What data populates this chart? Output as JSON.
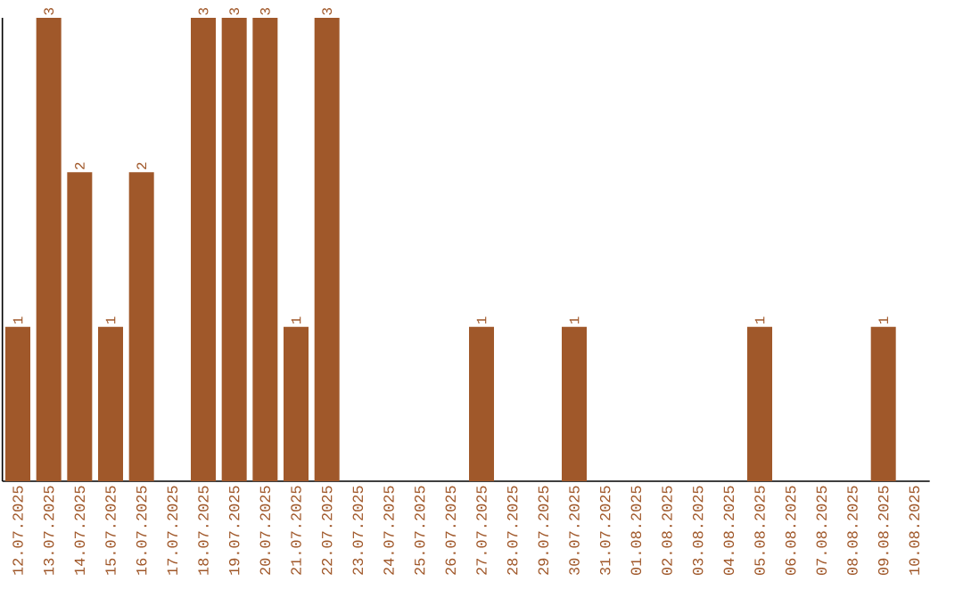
{
  "chart_data": {
    "type": "bar",
    "categories": [
      "12.07.2025",
      "13.07.2025",
      "14.07.2025",
      "15.07.2025",
      "16.07.2025",
      "17.07.2025",
      "18.07.2025",
      "19.07.2025",
      "20.07.2025",
      "21.07.2025",
      "22.07.2025",
      "23.07.2025",
      "24.07.2025",
      "25.07.2025",
      "26.07.2025",
      "27.07.2025",
      "28.07.2025",
      "29.07.2025",
      "30.07.2025",
      "31.07.2025",
      "01.08.2025",
      "02.08.2025",
      "03.08.2025",
      "04.08.2025",
      "05.08.2025",
      "06.08.2025",
      "07.08.2025",
      "08.08.2025",
      "09.08.2025",
      "10.08.2025"
    ],
    "values": [
      1,
      3,
      2,
      1,
      2,
      0,
      3,
      3,
      3,
      1,
      3,
      0,
      0,
      0,
      0,
      1,
      0,
      0,
      1,
      0,
      0,
      0,
      0,
      0,
      1,
      0,
      0,
      0,
      1,
      0
    ],
    "value_labels": [
      "1",
      "3",
      "2",
      "1",
      "2",
      null,
      "3",
      "3",
      "3",
      "1",
      "3",
      null,
      null,
      null,
      null,
      "1",
      null,
      null,
      "1",
      null,
      null,
      null,
      null,
      null,
      "1",
      null,
      null,
      null,
      "1",
      null
    ],
    "color": "#a0582a"
  }
}
